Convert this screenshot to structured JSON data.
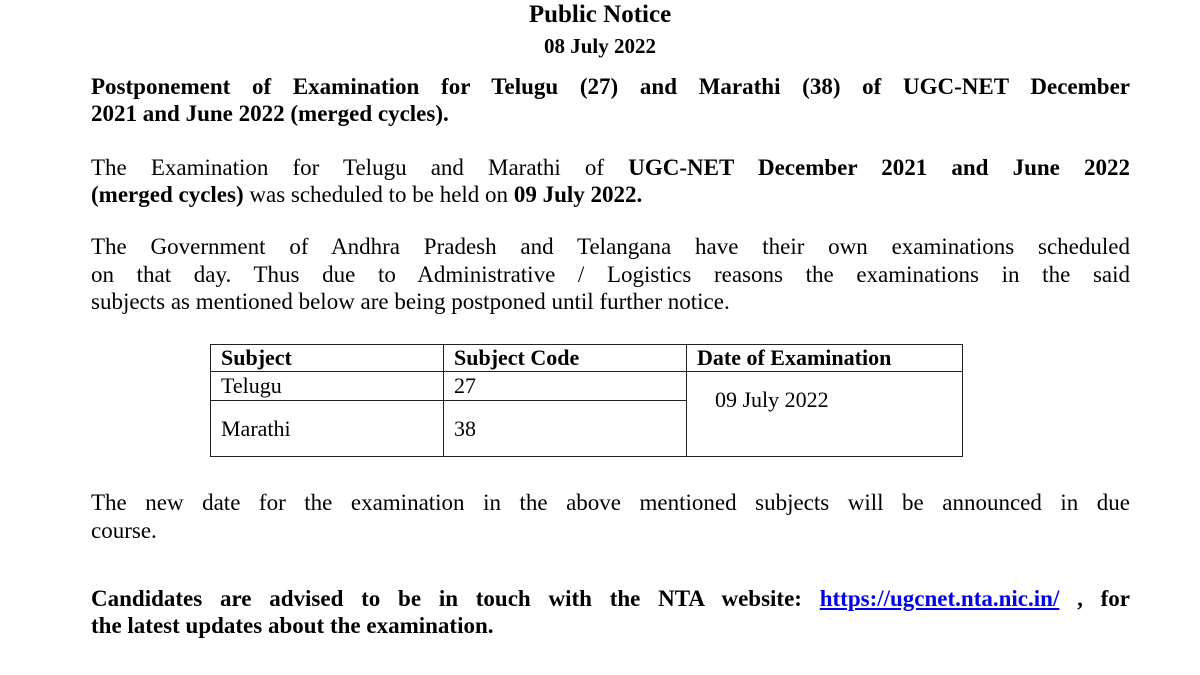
{
  "header": {
    "title": "Public Notice",
    "date": "08 July 2022"
  },
  "lines": [
    {
      "top": 0,
      "last": false,
      "segments": [
        {
          "t": "Postponement of Examination for Telugu (27) and Marathi (38) of UGC-NET December",
          "b": true
        }
      ]
    },
    {
      "last": true,
      "segments": [
        {
          "t": "2021 and June 2022 (merged cycles).",
          "b": true
        }
      ]
    },
    {
      "last": false,
      "segments": [
        {
          "t": "The Examination for Telugu and Marathi of ",
          "b": false
        },
        {
          "t": "UGC-NET December 2021 and June 2022",
          "b": true
        }
      ]
    },
    {
      "last": true,
      "segments": [
        {
          "t": "(merged cycles)",
          "b": true
        },
        {
          "t": " was scheduled to be held on ",
          "b": false
        },
        {
          "t": "09 July 2022.",
          "b": true
        }
      ]
    },
    {
      "last": false,
      "segments": [
        {
          "t": "The Government of Andhra Pradesh and Telangana have their own examinations scheduled",
          "b": false
        }
      ]
    },
    {
      "last": false,
      "segments": [
        {
          "t": "on that day. Thus due to Administrative / Logistics reasons the examinations in the said",
          "b": false
        }
      ]
    },
    {
      "last": true,
      "segments": [
        {
          "t": "subjects as mentioned below are being postponed until further notice.",
          "b": false
        }
      ]
    },
    {
      "last": false,
      "segments": [
        {
          "t": "The new date for the examination in the above mentioned subjects will be announced in due",
          "b": false
        }
      ]
    },
    {
      "last": true,
      "segments": [
        {
          "t": "course.",
          "b": false
        }
      ]
    },
    {
      "last": false,
      "segments": [
        {
          "t": "Candidates are advised to be in touch with the NTA website: ",
          "b": true
        },
        {
          "t": "https://ugcnet.nta.nic.in/",
          "b": true,
          "link": true
        },
        {
          "t": " , for",
          "b": true
        }
      ]
    },
    {
      "last": true,
      "segments": [
        {
          "t": "the latest updates about the examination.",
          "b": true
        }
      ]
    }
  ],
  "table": {
    "headers": [
      "Subject",
      "Subject Code",
      "Date of Examination"
    ],
    "rows": [
      {
        "subject": "Telugu",
        "code": "27"
      },
      {
        "subject": "Marathi",
        "code": "38"
      }
    ],
    "date": "09 July 2022"
  }
}
